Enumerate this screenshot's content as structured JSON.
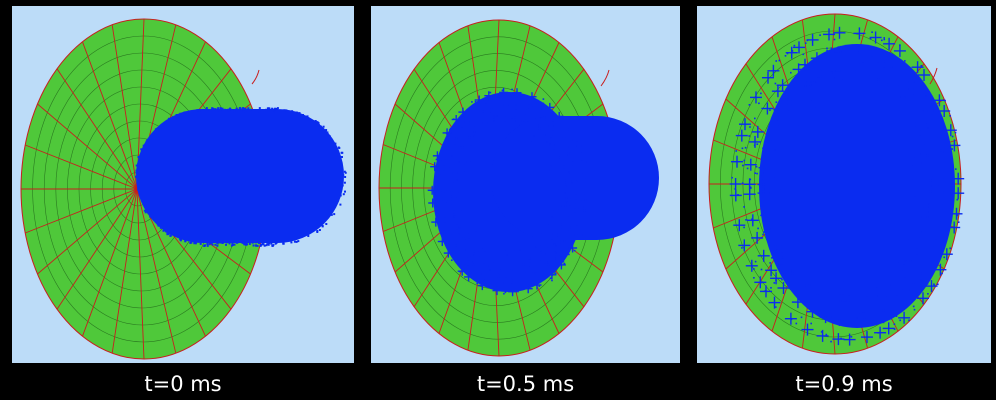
{
  "panels": [
    {
      "caption": "t=0 ms"
    },
    {
      "caption": "t=0.5 ms"
    },
    {
      "caption": "t=0.9 ms"
    }
  ],
  "colors": {
    "background": "#000000",
    "panel_background": "#bcdcf8",
    "target_fill": "#4fc83a",
    "mesh_lines": "#c81e1e",
    "particles": "#0a2cf0",
    "caption_text": "#ffffff"
  }
}
